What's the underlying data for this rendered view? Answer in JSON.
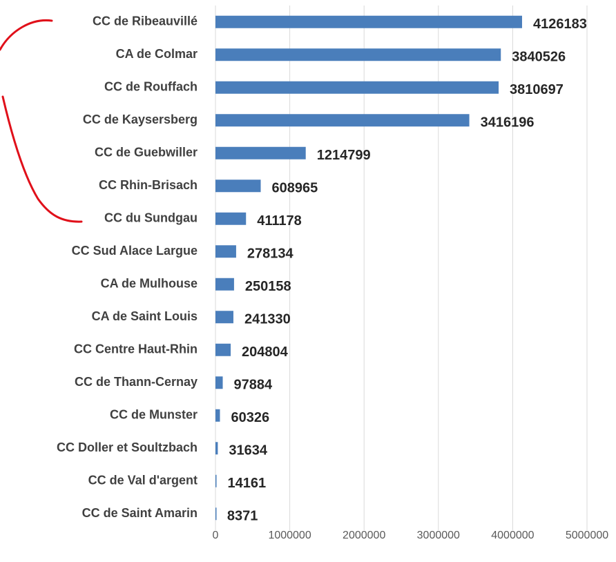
{
  "chart_data": {
    "type": "bar",
    "orientation": "horizontal",
    "categories": [
      "CC de Ribeauvillé",
      "CA de Colmar",
      "CC de Rouffach",
      "CC de Kaysersberg",
      "CC de Guebwiller",
      "CC Rhin-Brisach",
      "CC du Sundgau",
      "CC Sud Alace Largue",
      "CA de Mulhouse",
      "CA de Saint Louis",
      "CC Centre Haut-Rhin",
      "CC de Thann-Cernay",
      "CC de Munster",
      "CC Doller et Soultzbach",
      "CC de Val d'argent",
      "CC de Saint Amarin"
    ],
    "values": [
      4126183,
      3840526,
      3810697,
      3416196,
      1214799,
      608965,
      411178,
      278134,
      250158,
      241330,
      204804,
      97884,
      60326,
      31634,
      14161,
      8371
    ],
    "color": "#4a7ebb",
    "xlim": [
      0,
      5000000
    ],
    "xticks": [
      0,
      1000000,
      2000000,
      3000000,
      4000000,
      5000000
    ],
    "grid": true
  }
}
